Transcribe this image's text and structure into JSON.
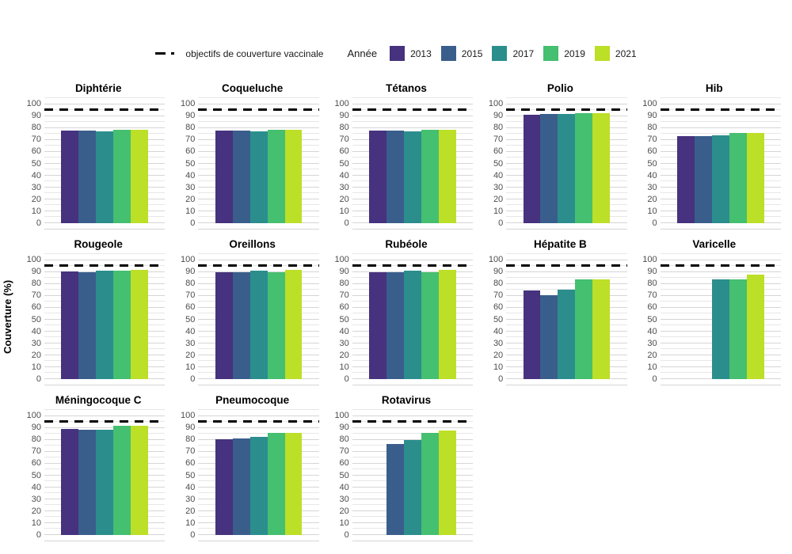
{
  "figure_title": "",
  "chart_data": {
    "type": "bar",
    "layout": "small-multiples 5 columns x 3 rows",
    "ylabel": "Couverture (%)",
    "xlabel": "",
    "ylim": [
      0,
      100
    ],
    "y_ticks": [
      0,
      10,
      20,
      30,
      40,
      50,
      60,
      70,
      80,
      90,
      100
    ],
    "x_tick_labels_visible": false,
    "grid": "on",
    "goal_line": {
      "value": 95,
      "style": "dashed",
      "color": "#000000",
      "label": "objectifs de couverture vaccinale"
    },
    "legend": {
      "title": "Année",
      "position": "top",
      "entries": [
        {
          "label": "2013",
          "color": "#46327E"
        },
        {
          "label": "2015",
          "color": "#3A5E8C"
        },
        {
          "label": "2017",
          "color": "#2B8E8D"
        },
        {
          "label": "2019",
          "color": "#45BF70"
        },
        {
          "label": "2021",
          "color": "#BCDF27"
        }
      ]
    },
    "categories": [
      "2013",
      "2015",
      "2017",
      "2019",
      "2021"
    ],
    "panels": [
      {
        "title": "Diphtérie",
        "values": [
          78,
          78,
          77,
          78.5,
          78.5
        ]
      },
      {
        "title": "Coqueluche",
        "values": [
          78,
          78,
          77,
          78.5,
          78.5
        ]
      },
      {
        "title": "Tétanos",
        "values": [
          78,
          78,
          77,
          78.5,
          78.5
        ]
      },
      {
        "title": "Polio",
        "values": [
          91,
          92,
          91.5,
          92.5,
          92.5
        ]
      },
      {
        "title": "Hib",
        "values": [
          73,
          73,
          74,
          75.5,
          76
        ]
      },
      {
        "title": "Rougeole",
        "values": [
          90.5,
          90,
          91,
          91,
          92
        ]
      },
      {
        "title": "Oreillons",
        "values": [
          90,
          89.5,
          91,
          90,
          92
        ]
      },
      {
        "title": "Rubéole",
        "values": [
          90,
          89.5,
          91,
          90,
          92
        ]
      },
      {
        "title": "Hépatite B",
        "values": [
          74.5,
          70.5,
          75,
          84,
          83.5
        ]
      },
      {
        "title": "Varicelle",
        "values": [
          null,
          null,
          83.5,
          83.5,
          88
        ]
      },
      {
        "title": "Méningocoque C",
        "values": [
          89,
          88.5,
          88.5,
          92,
          91.5
        ]
      },
      {
        "title": "Pneumocoque",
        "values": [
          80.5,
          81,
          82.5,
          85.5,
          86
        ]
      },
      {
        "title": "Rotavirus",
        "values": [
          null,
          76.5,
          79.5,
          85.5,
          87.5
        ]
      }
    ]
  }
}
